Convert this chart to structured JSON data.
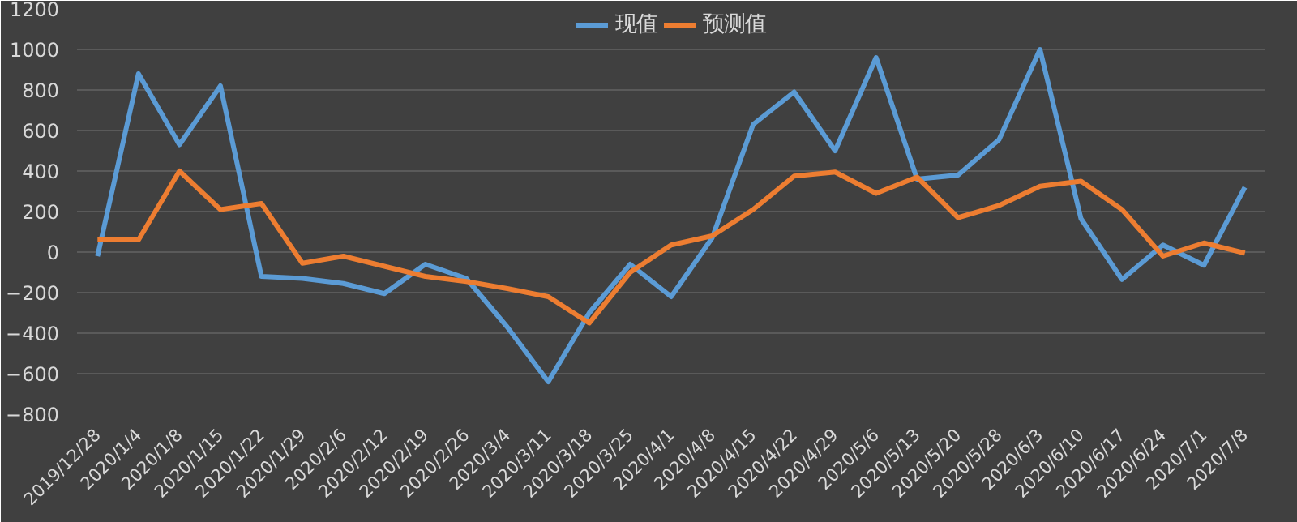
{
  "chart_data": {
    "type": "line",
    "categories": [
      "2019/12/28",
      "2020/1/4",
      "2020/1/8",
      "2020/1/15",
      "2020/1/22",
      "2020/1/29",
      "2020/2/6",
      "2020/2/12",
      "2020/2/19",
      "2020/2/26",
      "2020/3/4",
      "2020/3/11",
      "2020/3/18",
      "2020/3/25",
      "2020/4/1",
      "2020/4/8",
      "2020/4/15",
      "2020/4/22",
      "2020/4/29",
      "2020/5/6",
      "2020/5/13",
      "2020/5/20",
      "2020/5/28",
      "2020/6/3",
      "2020/6/10",
      "2020/6/17",
      "2020/6/24",
      "2020/7/1",
      "2020/7/8"
    ],
    "series": [
      {
        "name": "现值",
        "color": "#5b9bd5",
        "values": [
          -20,
          880,
          530,
          820,
          -120,
          -130,
          -155,
          -205,
          -60,
          -130,
          -370,
          -640,
          -300,
          -60,
          -220,
          70,
          630,
          790,
          500,
          960,
          360,
          380,
          555,
          1000,
          165,
          -135,
          35,
          -65,
          320
        ]
      },
      {
        "name": "预测值",
        "color": "#ed7d31",
        "values": [
          60,
          60,
          400,
          210,
          240,
          -55,
          -20,
          -70,
          -120,
          -145,
          -180,
          -220,
          -350,
          -100,
          35,
          80,
          210,
          375,
          395,
          290,
          370,
          170,
          230,
          325,
          350,
          210,
          -20,
          45,
          -5
        ]
      }
    ],
    "ylim": [
      -800,
      1200
    ],
    "yticks": [
      -800,
      -600,
      -400,
      -200,
      0,
      200,
      400,
      600,
      800,
      1000,
      1200
    ],
    "grid": "y",
    "legend": "top",
    "marker": "none",
    "line_style": "solid"
  }
}
